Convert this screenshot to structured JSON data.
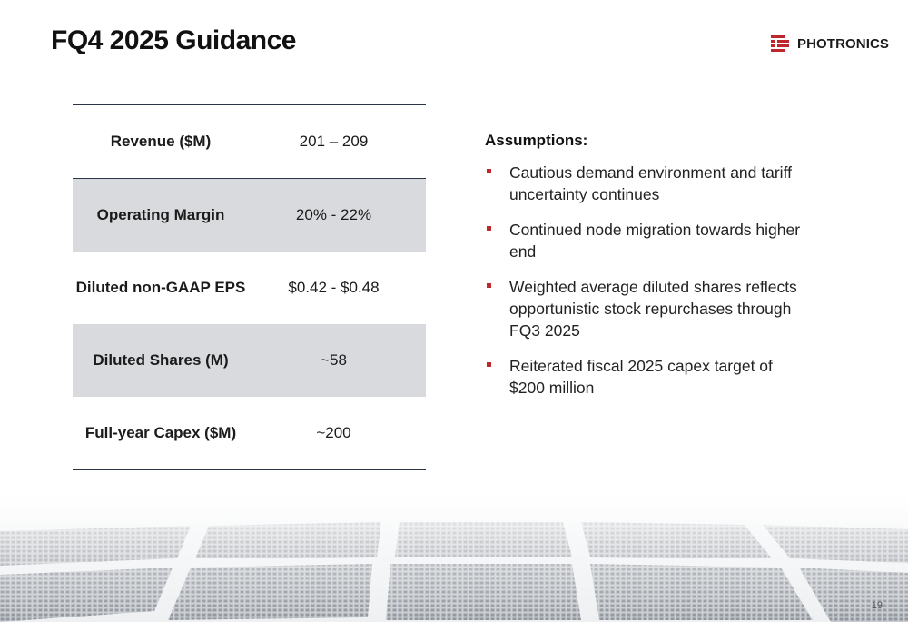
{
  "slide": {
    "title": "FQ4 2025 Guidance",
    "page_number": "19"
  },
  "logo": {
    "text": "PHOTRONICS",
    "icon": "photronics-logo-mark",
    "brand_color": "#c0272d"
  },
  "guidance_table": {
    "rows": [
      {
        "label": "Revenue ($M)",
        "value": "201 – 209"
      },
      {
        "label": "Operating Margin",
        "value": "20% - 22%"
      },
      {
        "label": "Diluted non-GAAP EPS",
        "value": "$0.42 - $0.48"
      },
      {
        "label": "Diluted Shares (M)",
        "value": "~58"
      },
      {
        "label": "Full-year Capex ($M)",
        "value": "~200"
      }
    ]
  },
  "assumptions": {
    "heading": "Assumptions:",
    "items": [
      "Cautious demand environment and tariff uncertainty continues",
      "Continued node migration towards higher end",
      "Weighted average diluted shares reflects opportunistic stock repurchases through FQ3 2025",
      "Reiterated fiscal 2025 capex target of $200 million"
    ]
  },
  "colors": {
    "shaded_row": "#d8dadd",
    "rule": "#2a3645",
    "bullet": "#c0272d"
  }
}
